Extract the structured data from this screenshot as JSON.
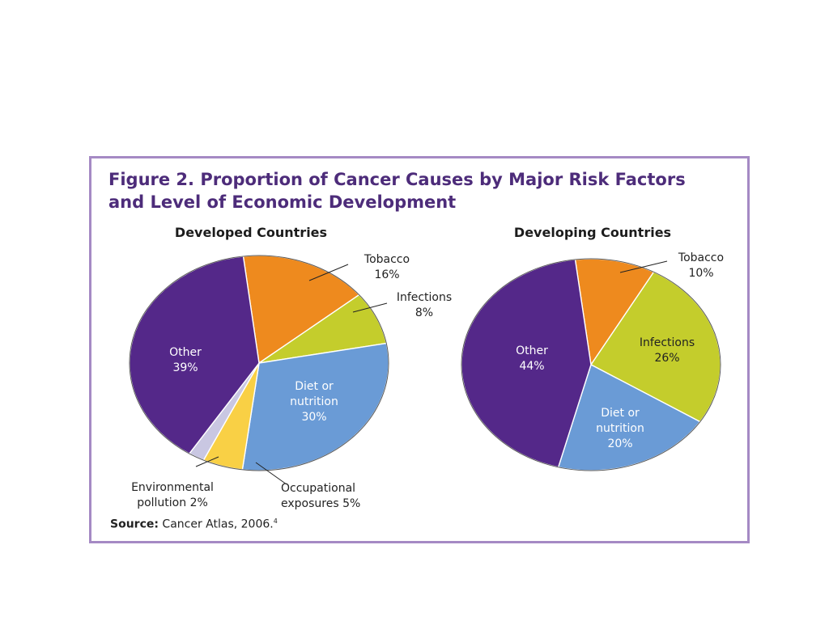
{
  "figure": {
    "title_line1": "Figure 2. Proportion of Cancer Causes by Major Risk Factors",
    "title_line2": "and Level of Economic Development",
    "source_label": "Source:",
    "source_text": " Cancer Atlas, 2006.",
    "source_footnote": "4"
  },
  "colors": {
    "frame": "#a58ac4",
    "title": "#4d2c7a",
    "tobacco": "#ee8a1e",
    "infections": "#c4cd2c",
    "diet": "#6a9bd6",
    "occupational": "#f9d045",
    "environmental": "#c9c7e2",
    "other": "#542889"
  },
  "chart_data": [
    {
      "type": "pie",
      "title": "Developed Countries",
      "slices": [
        {
          "key": "tobacco",
          "label_lines": [
            "Tobacco",
            "16%"
          ],
          "value": 16
        },
        {
          "key": "infections",
          "label_lines": [
            "Infections",
            "8%"
          ],
          "value": 8
        },
        {
          "key": "diet",
          "label_lines": [
            "Diet or",
            "nutrition",
            "30%"
          ],
          "value": 30
        },
        {
          "key": "occupational",
          "label_lines": [
            "Occupational",
            "exposures 5%"
          ],
          "value": 5
        },
        {
          "key": "environmental",
          "label_lines": [
            "Environmental",
            "pollution 2%"
          ],
          "value": 2
        },
        {
          "key": "other",
          "label_lines": [
            "Other",
            "39%"
          ],
          "value": 39
        }
      ]
    },
    {
      "type": "pie",
      "title": "Developing Countries",
      "slices": [
        {
          "key": "tobacco",
          "label_lines": [
            "Tobacco",
            "10%"
          ],
          "value": 10
        },
        {
          "key": "infections",
          "label_lines": [
            "Infections",
            "26%"
          ],
          "value": 26
        },
        {
          "key": "diet",
          "label_lines": [
            "Diet or",
            "nutrition",
            "20%"
          ],
          "value": 20
        },
        {
          "key": "other",
          "label_lines": [
            "Other",
            "44%"
          ],
          "value": 44
        }
      ]
    }
  ]
}
